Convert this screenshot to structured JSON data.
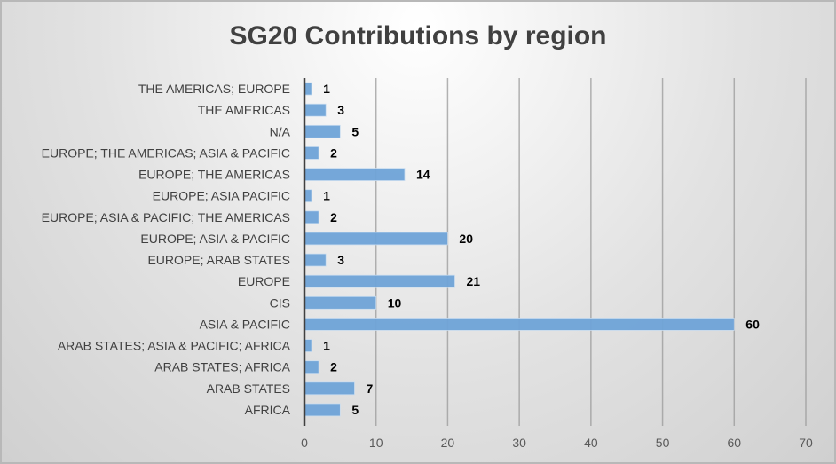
{
  "chart_data": {
    "type": "bar",
    "orientation": "horizontal",
    "title": "SG20 Contributions by region",
    "xlabel": "",
    "ylabel": "",
    "xlim": [
      0,
      70
    ],
    "x_ticks": [
      0,
      10,
      20,
      30,
      40,
      50,
      60,
      70
    ],
    "x_tick_labels": [
      "0",
      "10",
      "20",
      "30",
      "40",
      "50",
      "60",
      "70"
    ],
    "grid": true,
    "legend": "none",
    "bar_color": "#6fa4d8",
    "categories": [
      "THE AMERICAS; EUROPE",
      "THE AMERICAS",
      "N/A",
      "EUROPE; THE AMERICAS; ASIA & PACIFIC",
      "EUROPE; THE AMERICAS",
      "EUROPE; ASIA PACIFIC",
      "EUROPE; ASIA & PACIFIC; THE AMERICAS",
      "EUROPE; ASIA & PACIFIC",
      "EUROPE; ARAB STATES",
      "EUROPE",
      "CIS",
      "ASIA & PACIFIC",
      "ARAB STATES; ASIA & PACIFIC; AFRICA",
      "ARAB STATES; AFRICA",
      "ARAB STATES",
      "AFRICA"
    ],
    "values": [
      1,
      3,
      5,
      2,
      14,
      1,
      2,
      20,
      3,
      21,
      10,
      60,
      1,
      2,
      7,
      5
    ],
    "data_labels": [
      "1",
      "3",
      "5",
      "2",
      "14",
      "1",
      "2",
      "20",
      "3",
      "21",
      "10",
      "60",
      "1",
      "2",
      "7",
      "5"
    ]
  }
}
